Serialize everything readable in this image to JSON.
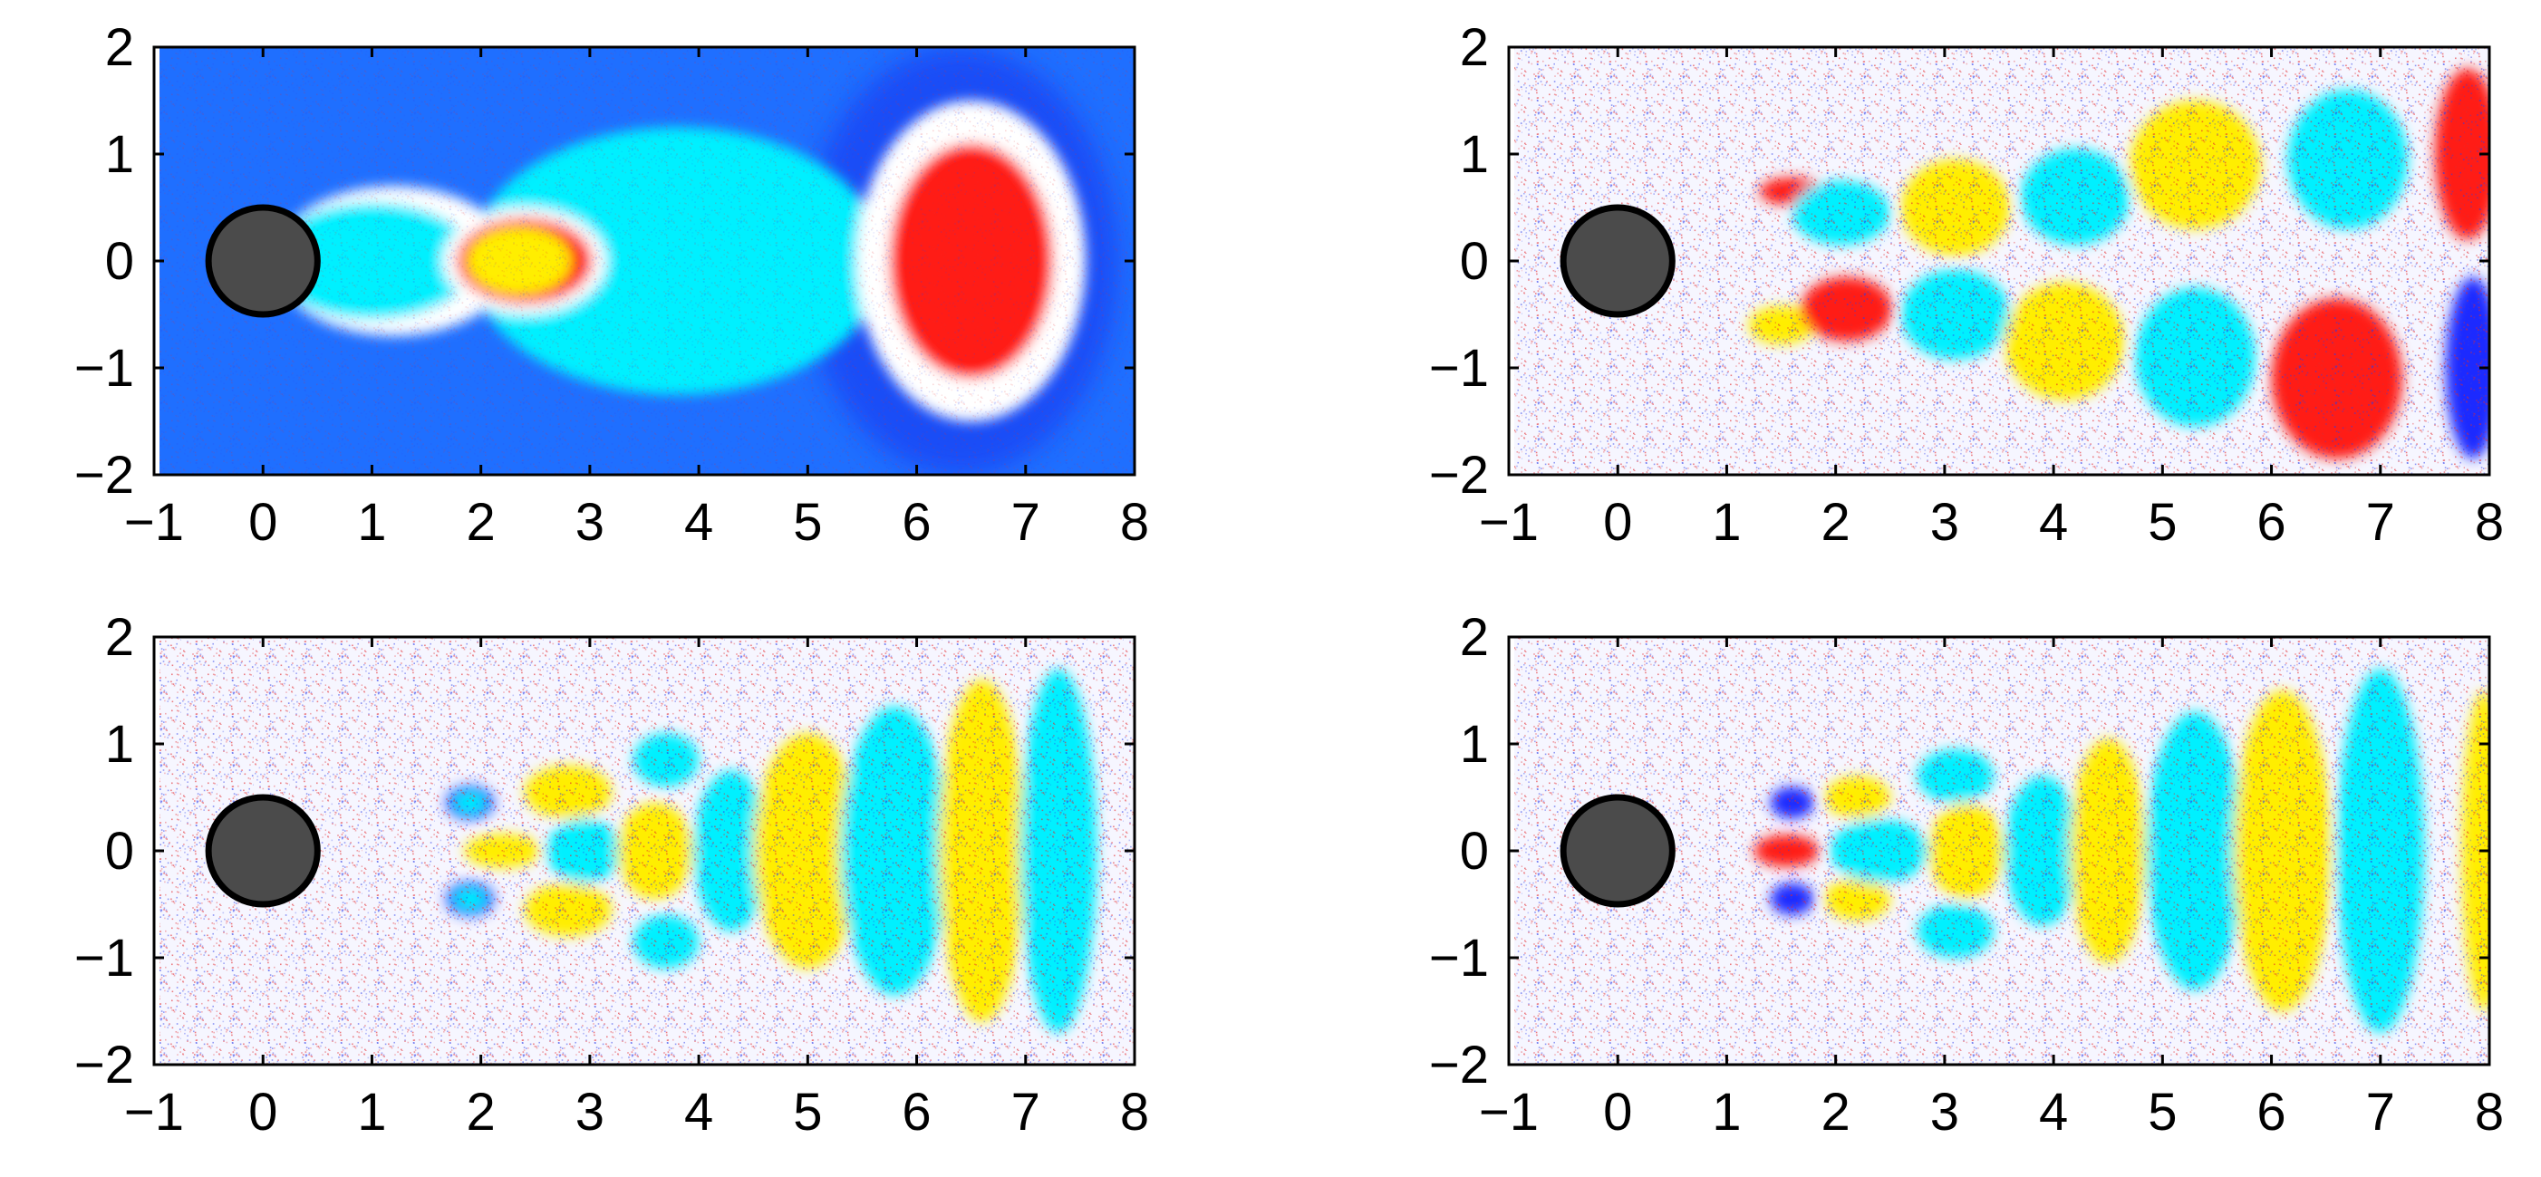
{
  "figure": {
    "colors": {
      "background_mean": "#1f6fff",
      "light_blue": "#00f0ff",
      "yellow": "#ffee00",
      "red": "#ff1d16",
      "dark_blue": "#1b2cff",
      "noise_white": "#f6f6ff",
      "cylinder_fill": "#4b4b4b",
      "cylinder_edge": "#000000"
    }
  },
  "chart_data": [
    {
      "type": "heatmap",
      "panel": "top-left",
      "title": "",
      "xlabel": "",
      "ylabel": "",
      "xlim": [
        -1,
        8
      ],
      "ylim": [
        -2,
        2
      ],
      "xticks": [
        "−1",
        "0",
        "1",
        "2",
        "3",
        "4",
        "5",
        "6",
        "7",
        "8"
      ],
      "yticks": [
        "−2",
        "−1",
        "0",
        "1",
        "2"
      ],
      "background": "#1f6fff",
      "cylinder": {
        "cx": 0,
        "cy": 0,
        "r": 0.5
      },
      "blobs": [
        {
          "cx": 1.2,
          "cy": 0,
          "rx": 1.1,
          "ry": 0.7,
          "color": "#ffffff"
        },
        {
          "cx": 1.0,
          "cy": 0,
          "rx": 0.95,
          "ry": 0.55,
          "color": "#00f0ff"
        },
        {
          "cx": 3.8,
          "cy": 0,
          "rx": 1.9,
          "ry": 1.25,
          "color": "#00f0ff"
        },
        {
          "cx": 2.4,
          "cy": 0,
          "rx": 0.75,
          "ry": 0.5,
          "color": "#ffffff"
        },
        {
          "cx": 2.4,
          "cy": 0,
          "rx": 0.62,
          "ry": 0.4,
          "color": "#ff1d16"
        },
        {
          "cx": 2.35,
          "cy": 0,
          "rx": 0.48,
          "ry": 0.32,
          "color": "#ffee00"
        },
        {
          "cx": 6.5,
          "cy": 0,
          "rx": 1.05,
          "ry": 1.5,
          "color": "#ffffff"
        },
        {
          "cx": 6.5,
          "cy": 0,
          "rx": 0.75,
          "ry": 1.1,
          "color": "#ff1d16"
        }
      ]
    },
    {
      "type": "heatmap",
      "panel": "top-right",
      "title": "",
      "xlabel": "",
      "ylabel": "",
      "xlim": [
        -1,
        8
      ],
      "ylim": [
        -2,
        2
      ],
      "xticks": [
        "−1",
        "0",
        "1",
        "2",
        "3",
        "4",
        "5",
        "6",
        "7",
        "8"
      ],
      "yticks": [
        "−2",
        "−1",
        "0",
        "1",
        "2"
      ],
      "background": "#f6f6ff",
      "cylinder": {
        "cx": 0,
        "cy": 0,
        "r": 0.5
      },
      "blobs": [
        {
          "cx": 1.6,
          "cy": 0.65,
          "rx": 0.3,
          "ry": 0.13,
          "color": "#ff1d16"
        },
        {
          "cx": 2.05,
          "cy": 0.45,
          "rx": 0.45,
          "ry": 0.3,
          "color": "#00f0ff"
        },
        {
          "cx": 3.1,
          "cy": 0.5,
          "rx": 0.5,
          "ry": 0.45,
          "color": "#ffee00"
        },
        {
          "cx": 4.2,
          "cy": 0.6,
          "rx": 0.5,
          "ry": 0.45,
          "color": "#00f0ff"
        },
        {
          "cx": 5.3,
          "cy": 0.9,
          "rx": 0.6,
          "ry": 0.6,
          "color": "#ffee00"
        },
        {
          "cx": 6.7,
          "cy": 0.95,
          "rx": 0.55,
          "ry": 0.65,
          "color": "#00f0ff"
        },
        {
          "cx": 7.8,
          "cy": 1.0,
          "rx": 0.3,
          "ry": 0.8,
          "color": "#ff1d16"
        },
        {
          "cx": 1.5,
          "cy": -0.6,
          "rx": 0.3,
          "ry": 0.18,
          "color": "#ffee00"
        },
        {
          "cx": 2.1,
          "cy": -0.45,
          "rx": 0.42,
          "ry": 0.3,
          "color": "#ff1d16"
        },
        {
          "cx": 3.1,
          "cy": -0.5,
          "rx": 0.5,
          "ry": 0.42,
          "color": "#00f0ff"
        },
        {
          "cx": 4.1,
          "cy": -0.75,
          "rx": 0.55,
          "ry": 0.55,
          "color": "#ffee00"
        },
        {
          "cx": 5.3,
          "cy": -0.9,
          "rx": 0.55,
          "ry": 0.65,
          "color": "#00f0ff"
        },
        {
          "cx": 6.6,
          "cy": -1.1,
          "rx": 0.6,
          "ry": 0.75,
          "color": "#ff1d16"
        },
        {
          "cx": 7.85,
          "cy": -1.0,
          "rx": 0.25,
          "ry": 0.85,
          "color": "#1b2cff"
        }
      ]
    },
    {
      "type": "heatmap",
      "panel": "bottom-left",
      "title": "",
      "xlabel": "",
      "ylabel": "",
      "xlim": [
        -1,
        8
      ],
      "ylim": [
        -2,
        2
      ],
      "xticks": [
        "−1",
        "0",
        "1",
        "2",
        "3",
        "4",
        "5",
        "6",
        "7",
        "8"
      ],
      "yticks": [
        "−2",
        "−1",
        "0",
        "1",
        "2"
      ],
      "background": "#f6f6ff",
      "cylinder": {
        "cx": 0,
        "cy": 0,
        "r": 0.5
      },
      "blobs": [
        {
          "cx": 1.9,
          "cy": 0.45,
          "rx": 0.22,
          "ry": 0.16,
          "color": "#1b2cff"
        },
        {
          "cx": 1.9,
          "cy": 0.45,
          "rx": 0.15,
          "ry": 0.1,
          "color": "#00f0ff"
        },
        {
          "cx": 1.9,
          "cy": -0.45,
          "rx": 0.22,
          "ry": 0.16,
          "color": "#1b2cff"
        },
        {
          "cx": 1.9,
          "cy": -0.45,
          "rx": 0.15,
          "ry": 0.1,
          "color": "#00f0ff"
        },
        {
          "cx": 2.2,
          "cy": 0,
          "rx": 0.35,
          "ry": 0.16,
          "color": "#ffee00"
        },
        {
          "cx": 2.8,
          "cy": 0.55,
          "rx": 0.4,
          "ry": 0.25,
          "color": "#ffee00"
        },
        {
          "cx": 2.8,
          "cy": -0.55,
          "rx": 0.4,
          "ry": 0.25,
          "color": "#ffee00"
        },
        {
          "cx": 2.95,
          "cy": 0,
          "rx": 0.35,
          "ry": 0.3,
          "color": "#00f0ff"
        },
        {
          "cx": 3.7,
          "cy": 0.85,
          "rx": 0.3,
          "ry": 0.25,
          "color": "#00f0ff"
        },
        {
          "cx": 3.7,
          "cy": -0.85,
          "rx": 0.3,
          "ry": 0.25,
          "color": "#00f0ff"
        },
        {
          "cx": 3.6,
          "cy": 0,
          "rx": 0.35,
          "ry": 0.45,
          "color": "#ffee00"
        },
        {
          "cx": 4.3,
          "cy": 0,
          "rx": 0.35,
          "ry": 0.75,
          "color": "#00f0ff"
        },
        {
          "cx": 5.0,
          "cy": 0,
          "rx": 0.5,
          "ry": 1.1,
          "color": "#ffee00"
        },
        {
          "cx": 5.8,
          "cy": 0,
          "rx": 0.5,
          "ry": 1.35,
          "color": "#00f0ff"
        },
        {
          "cx": 6.6,
          "cy": 0,
          "rx": 0.4,
          "ry": 1.6,
          "color": "#ffee00"
        },
        {
          "cx": 7.3,
          "cy": 0,
          "rx": 0.35,
          "ry": 1.7,
          "color": "#00f0ff"
        }
      ]
    },
    {
      "type": "heatmap",
      "panel": "bottom-right",
      "title": "",
      "xlabel": "",
      "ylabel": "",
      "xlim": [
        -1,
        8
      ],
      "ylim": [
        -2,
        2
      ],
      "xticks": [
        "−1",
        "0",
        "1",
        "2",
        "3",
        "4",
        "5",
        "6",
        "7",
        "8"
      ],
      "yticks": [
        "−2",
        "−1",
        "0",
        "1",
        "2"
      ],
      "background": "#f6f6ff",
      "cylinder": {
        "cx": 0,
        "cy": 0,
        "r": 0.5
      },
      "blobs": [
        {
          "cx": 1.6,
          "cy": 0.45,
          "rx": 0.2,
          "ry": 0.15,
          "color": "#1b2cff"
        },
        {
          "cx": 1.6,
          "cy": -0.45,
          "rx": 0.2,
          "ry": 0.15,
          "color": "#1b2cff"
        },
        {
          "cx": 1.55,
          "cy": 0,
          "rx": 0.3,
          "ry": 0.15,
          "color": "#ff1d16"
        },
        {
          "cx": 2.2,
          "cy": 0.5,
          "rx": 0.3,
          "ry": 0.2,
          "color": "#ffee00"
        },
        {
          "cx": 2.2,
          "cy": -0.45,
          "rx": 0.3,
          "ry": 0.2,
          "color": "#ffee00"
        },
        {
          "cx": 2.4,
          "cy": 0,
          "rx": 0.45,
          "ry": 0.3,
          "color": "#00f0ff"
        },
        {
          "cx": 3.1,
          "cy": 0.7,
          "rx": 0.35,
          "ry": 0.25,
          "color": "#00f0ff"
        },
        {
          "cx": 3.1,
          "cy": -0.75,
          "rx": 0.35,
          "ry": 0.25,
          "color": "#00f0ff"
        },
        {
          "cx": 3.2,
          "cy": 0,
          "rx": 0.35,
          "ry": 0.45,
          "color": "#ffee00"
        },
        {
          "cx": 3.9,
          "cy": 0,
          "rx": 0.35,
          "ry": 0.7,
          "color": "#00f0ff"
        },
        {
          "cx": 4.5,
          "cy": 0,
          "rx": 0.35,
          "ry": 1.05,
          "color": "#ffee00"
        },
        {
          "cx": 5.3,
          "cy": 0,
          "rx": 0.45,
          "ry": 1.3,
          "color": "#00f0ff"
        },
        {
          "cx": 6.1,
          "cy": 0,
          "rx": 0.45,
          "ry": 1.5,
          "color": "#ffee00"
        },
        {
          "cx": 7.0,
          "cy": 0,
          "rx": 0.4,
          "ry": 1.7,
          "color": "#00f0ff"
        },
        {
          "cx": 7.95,
          "cy": 0,
          "rx": 0.2,
          "ry": 1.5,
          "color": "#ffee00"
        }
      ]
    }
  ]
}
